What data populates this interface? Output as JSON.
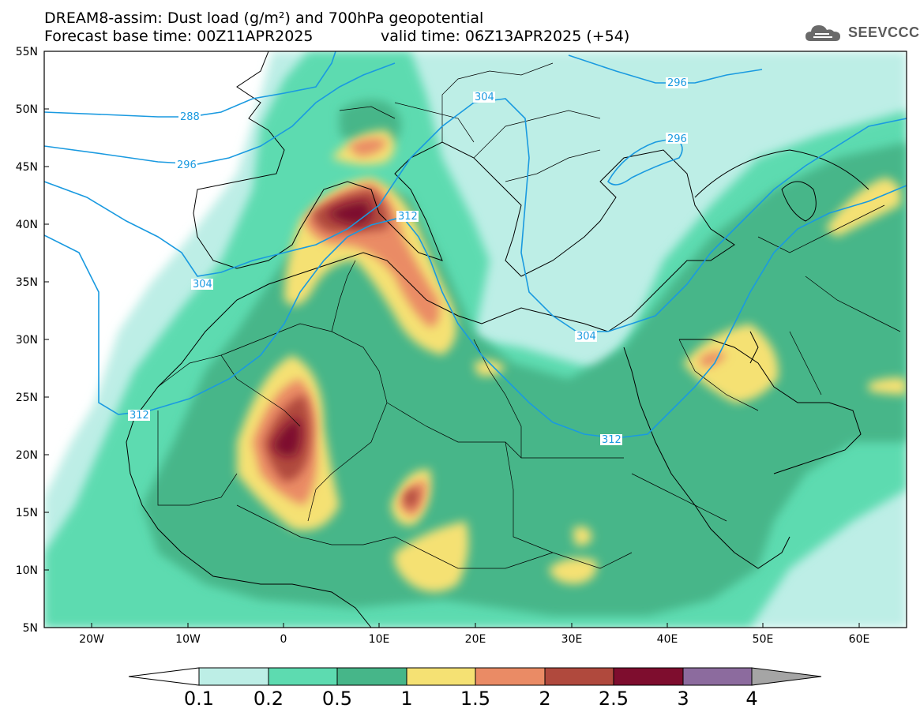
{
  "title_line1": "DREAM8-assim: Dust load (g/m²) and 700hPa geopotential",
  "title_line2_left": "Forecast base time: 00Z11APR2025",
  "title_line2_right": "valid time: 06Z13APR2025 (+54)",
  "logo_text": "SEEVCCC",
  "lat_labels": [
    "55N",
    "50N",
    "45N",
    "40N",
    "35N",
    "30N",
    "25N",
    "20N",
    "15N",
    "10N",
    "5N"
  ],
  "lon_labels": [
    "20W",
    "10W",
    "0",
    "10E",
    "20E",
    "30E",
    "40E",
    "50E",
    "60E"
  ],
  "contour_labels": [
    "288",
    "296",
    "296",
    "296",
    "304",
    "304",
    "304",
    "312",
    "312",
    "312"
  ],
  "colorbar": {
    "labels": [
      "0.1",
      "0.2",
      "0.5",
      "1",
      "1.5",
      "2",
      "2.5",
      "3",
      "4"
    ],
    "colors": [
      "#ffffff",
      "#bdeee6",
      "#5ddbb0",
      "#46b689",
      "#f5e173",
      "#ea8b65",
      "#b0493d",
      "#7e0d2e",
      "#8c6b9e",
      "#a5a5a5"
    ]
  },
  "colors": {
    "land_bg": "#ffffff",
    "c1": "#bdeee6",
    "c2": "#5ddbb0",
    "c3": "#46b689",
    "c4": "#f5e173",
    "c5": "#ea8b65",
    "c6": "#b0493d",
    "c7": "#7e0d2e",
    "contour": "#1a9ae0"
  }
}
